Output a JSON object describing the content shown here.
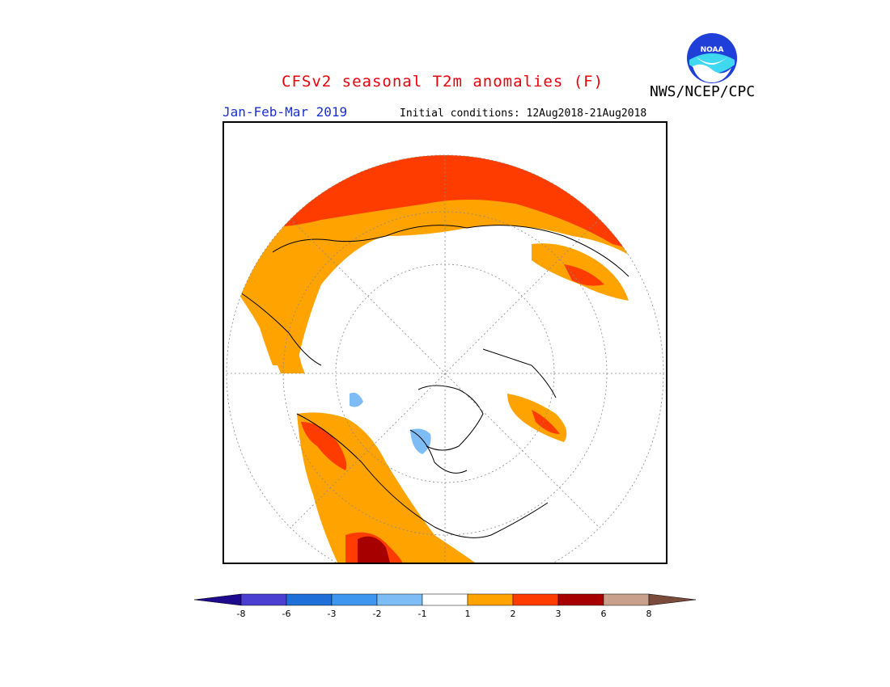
{
  "title": "CFSv2 seasonal T2m anomalies (F)",
  "organization": "NWS/NCEP/CPC",
  "logo_text": "NOAA",
  "season": "Jan-Feb-Mar 2019",
  "initial_conditions": "Initial conditions: 12Aug2018-21Aug2018",
  "colorbar": {
    "labels": [
      "-8",
      "-6",
      "-3",
      "-2",
      "-1",
      "1",
      "2",
      "3",
      "6",
      "8"
    ],
    "colors": [
      "#1e0a8c",
      "#4b3fd2",
      "#1f6fd8",
      "#3f96ee",
      "#7dbcf4",
      "#ffffff",
      "#ffa300",
      "#ff3c00",
      "#a60000",
      "#c8a08c",
      "#7a4a3a"
    ]
  },
  "legend_colors": {
    "warm_1_2": "#ffa300",
    "warm_2_3": "#ff3c00",
    "warm_3_6": "#a60000",
    "cool_1_2": "#7dbcf4",
    "neutral": "#ffffff"
  }
}
